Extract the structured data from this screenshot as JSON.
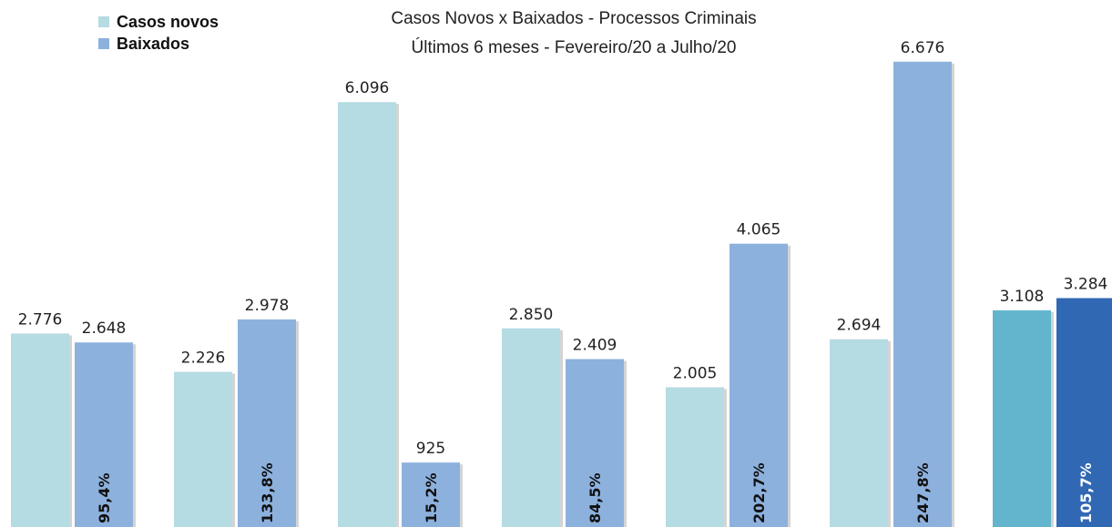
{
  "chart_data": {
    "type": "bar",
    "title": "Casos Novos x Baixados - Processos Criminais",
    "subtitle": "Últimos 6 meses - Fevereiro/20 a Julho/20",
    "categories": [
      "",
      "",
      "",
      "",
      "",
      "",
      ""
    ],
    "series": [
      {
        "name": "Casos novos",
        "values": [
          2776,
          2226,
          6096,
          2850,
          2005,
          2694,
          3108
        ],
        "labels": [
          "2.776",
          "2.226",
          "6.096",
          "2.850",
          "2.005",
          "2.694",
          "3.108"
        ]
      },
      {
        "name": "Baixados",
        "values": [
          2648,
          2978,
          925,
          2409,
          4065,
          6676,
          3284
        ],
        "labels": [
          "2.648",
          "2.978",
          "925",
          "2.409",
          "4.065",
          "6.676",
          "3.284"
        ]
      }
    ],
    "ratio_labels": [
      "95,4%",
      "133,8%",
      "15,2%",
      "84,5%",
      "202,7%",
      "247,8%",
      "105,7%"
    ],
    "ylim": [
      0,
      7300
    ],
    "grid": false,
    "legend_position": "top-left"
  },
  "colors": {
    "casos": "#b5dbe3",
    "baixados": "#8db1dd",
    "casos_avg": "#62b5cc",
    "baixados_avg": "#3168b4"
  }
}
